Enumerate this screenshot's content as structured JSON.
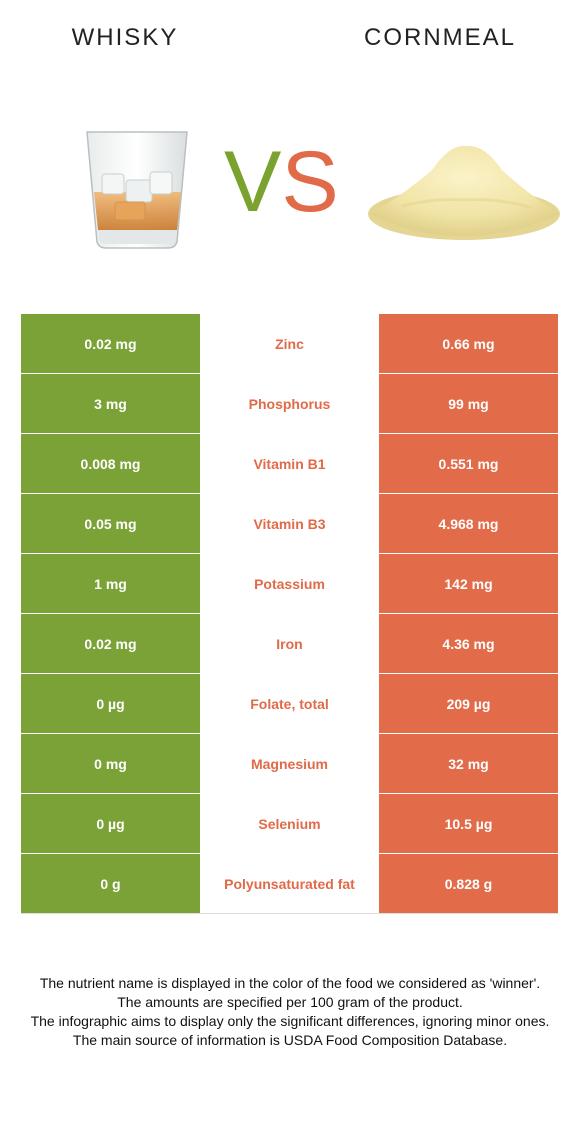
{
  "header": {
    "left_food": "WHISKY",
    "right_food": "CORNMEAL",
    "vs_v": "V",
    "vs_s": "S"
  },
  "colors": {
    "left_accent": "#7ba237",
    "right_accent": "#e26b49",
    "winner_text": "#e16a48"
  },
  "rows": [
    {
      "left": "0.02 mg",
      "nutrient": "Zinc",
      "right": "0.66 mg"
    },
    {
      "left": "3 mg",
      "nutrient": "Phosphorus",
      "right": "99 mg"
    },
    {
      "left": "0.008 mg",
      "nutrient": "Vitamin B1",
      "right": "0.551 mg"
    },
    {
      "left": "0.05 mg",
      "nutrient": "Vitamin B3",
      "right": "4.968 mg"
    },
    {
      "left": "1 mg",
      "nutrient": "Potassium",
      "right": "142 mg"
    },
    {
      "left": "0.02 mg",
      "nutrient": "Iron",
      "right": "4.36 mg"
    },
    {
      "left": "0 µg",
      "nutrient": "Folate, total",
      "right": "209 µg"
    },
    {
      "left": "0 mg",
      "nutrient": "Magnesium",
      "right": "32 mg"
    },
    {
      "left": "0 µg",
      "nutrient": "Selenium",
      "right": "10.5 µg"
    },
    {
      "left": "0 g",
      "nutrient": "Polyunsaturated fat",
      "right": "0.828 g"
    }
  ],
  "footer": {
    "line1": "The nutrient name is displayed in the color of the food we considered as 'winner'.",
    "line2": "The amounts are specified per 100 gram of the product.",
    "line3": "The infographic aims to display only the significant differences, ignoring minor ones.",
    "line4": "The main source of information is USDA Food Composition Database."
  }
}
